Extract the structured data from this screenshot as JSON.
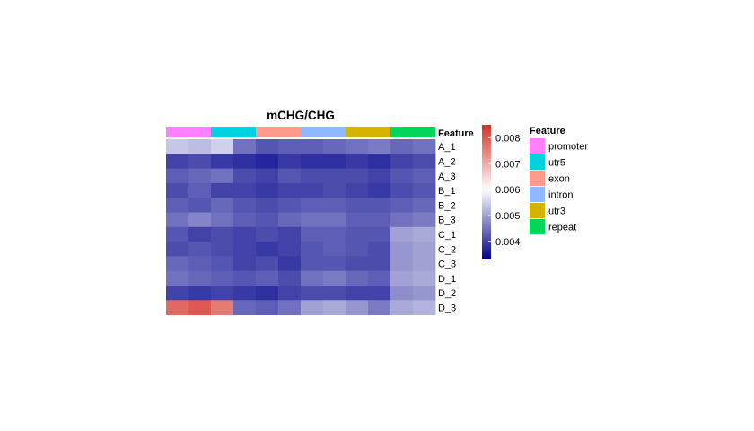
{
  "chart_data": {
    "type": "heatmap",
    "title": "mCHG/CHG",
    "rows": [
      "A_1",
      "A_2",
      "A_3",
      "B_1",
      "B_2",
      "B_3",
      "C_1",
      "C_2",
      "C_3",
      "D_1",
      "D_2",
      "D_3"
    ],
    "annotation": {
      "label": "Feature",
      "categories": [
        "promoter",
        "utr5",
        "exon",
        "intron",
        "utr3",
        "repeat"
      ],
      "colors": [
        "#ff80ff",
        "#00d2e0",
        "#ff9a8c",
        "#8fb8ff",
        "#d4b400",
        "#00d65a"
      ]
    },
    "values": [
      [
        0.0054,
        0.0053,
        0.0055,
        0.0045,
        0.0042,
        0.0043,
        0.0043,
        0.0044,
        0.0045,
        0.0046,
        0.0044,
        0.0045
      ],
      [
        0.004,
        0.0041,
        0.0039,
        0.0038,
        0.0037,
        0.0039,
        0.0038,
        0.0038,
        0.0039,
        0.0038,
        0.004,
        0.0041
      ],
      [
        0.0043,
        0.0044,
        0.0045,
        0.0041,
        0.004,
        0.0042,
        0.0041,
        0.0041,
        0.0041,
        0.004,
        0.0042,
        0.0043
      ],
      [
        0.0041,
        0.0043,
        0.004,
        0.004,
        0.0039,
        0.004,
        0.004,
        0.0041,
        0.004,
        0.0039,
        0.0041,
        0.0042
      ],
      [
        0.0043,
        0.0042,
        0.0044,
        0.0042,
        0.0041,
        0.0042,
        0.0043,
        0.0043,
        0.0042,
        0.0042,
        0.0043,
        0.0044
      ],
      [
        0.0045,
        0.0047,
        0.0045,
        0.0043,
        0.0042,
        0.0044,
        0.0045,
        0.0045,
        0.0043,
        0.0043,
        0.0045,
        0.0046
      ],
      [
        0.0042,
        0.004,
        0.0041,
        0.004,
        0.0041,
        0.004,
        0.0043,
        0.0043,
        0.0042,
        0.0042,
        0.005,
        0.0051
      ],
      [
        0.0041,
        0.0042,
        0.0041,
        0.004,
        0.0039,
        0.004,
        0.0042,
        0.0043,
        0.0042,
        0.0041,
        0.0049,
        0.005
      ],
      [
        0.0044,
        0.0043,
        0.0042,
        0.004,
        0.0041,
        0.0039,
        0.0042,
        0.0042,
        0.0041,
        0.0041,
        0.0049,
        0.005
      ],
      [
        0.0045,
        0.0044,
        0.0043,
        0.0042,
        0.0043,
        0.0041,
        0.0045,
        0.0046,
        0.0044,
        0.0043,
        0.005,
        0.0051
      ],
      [
        0.004,
        0.0039,
        0.004,
        0.0039,
        0.0038,
        0.004,
        0.0041,
        0.0041,
        0.004,
        0.004,
        0.0048,
        0.0049
      ],
      [
        0.0078,
        0.008,
        0.0076,
        0.0044,
        0.0043,
        0.0045,
        0.005,
        0.0051,
        0.0049,
        0.0046,
        0.0051,
        0.0052
      ]
    ],
    "colorbar": {
      "ticks": [
        "0.008",
        "0.007",
        "0.006",
        "0.005",
        "0.004"
      ],
      "tick_values": [
        0.008,
        0.007,
        0.006,
        0.005,
        0.004
      ],
      "range": [
        0.0033,
        0.0085
      ],
      "colors": [
        "#00008b",
        "#ffffff",
        "#d73027"
      ],
      "mid": 0.006
    },
    "legend": {
      "title": "Feature",
      "placement": "right"
    }
  }
}
